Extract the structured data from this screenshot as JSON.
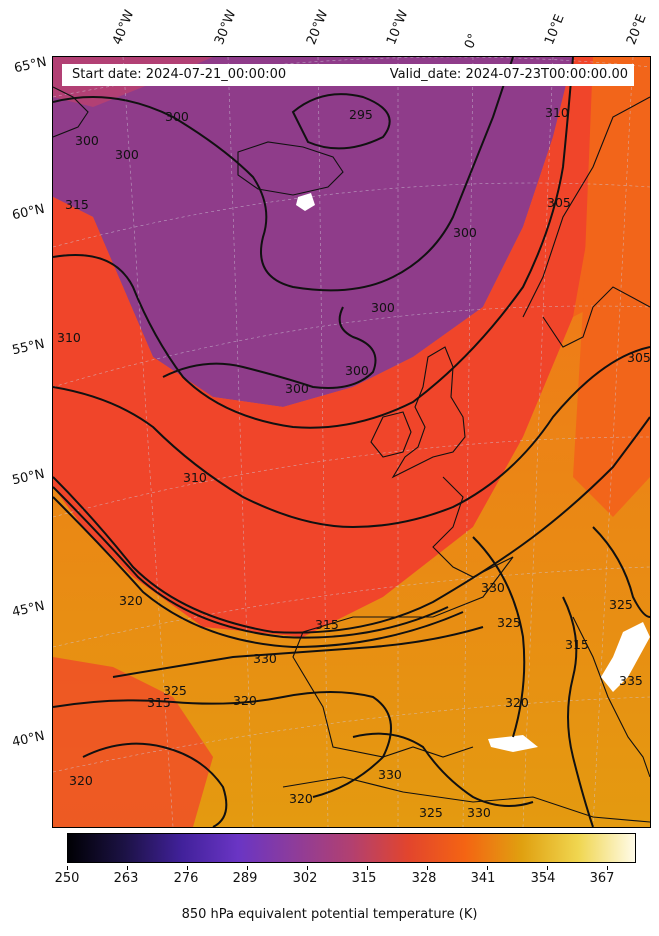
{
  "header": {
    "start_date": "Start date: 2024-07-21_00:00:00",
    "valid_date": "Valid_date: 2024-07-23T00:00:00.00"
  },
  "lat_labels": [
    "65°N",
    "60°N",
    "55°N",
    "50°N",
    "45°N",
    "40°N"
  ],
  "lon_labels": [
    "40°W",
    "30°W",
    "20°W",
    "10°W",
    "0°",
    "10°E",
    "20°E"
  ],
  "contour_labels": [
    "295",
    "300",
    "300",
    "300",
    "300",
    "300",
    "300",
    "300",
    "305",
    "305",
    "310",
    "310",
    "310",
    "315",
    "315",
    "315",
    "315",
    "320",
    "320",
    "320",
    "320",
    "320",
    "325",
    "325",
    "325",
    "325",
    "330",
    "330",
    "330",
    "330",
    "335"
  ],
  "colorbar": {
    "title": "850 hPa equivalent potential temperature (K)",
    "ticks": [
      "250",
      "263",
      "276",
      "289",
      "302",
      "315",
      "328",
      "341",
      "354",
      "367"
    ],
    "colors": [
      "#000004",
      "#1c1245",
      "#41219a",
      "#6a35c4",
      "#8e3c9a",
      "#b24070",
      "#e2452d",
      "#f46413",
      "#e0a010",
      "#f0d650",
      "#fffbe8"
    ]
  },
  "field_colors": {
    "purple": "#8f3c8a",
    "magenta": "#b24074",
    "red": "#f0452a",
    "orange": "#f2651a",
    "gold": "#e79a10"
  }
}
